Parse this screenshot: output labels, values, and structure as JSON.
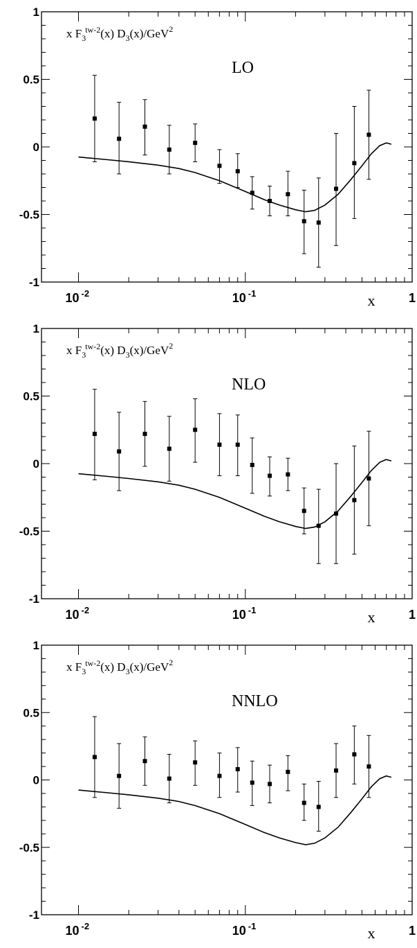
{
  "chart_data": [
    {
      "type": "scatter",
      "annotation": "LO",
      "ylabel": {
        "pre": "x F",
        "sub": "3",
        "sup": "tw-2",
        "post": "(x) D",
        "sub2": "3",
        "post2": "(x)/GeV",
        "sup2": "2"
      },
      "xlabel": "x",
      "x_scale": "log",
      "xlim": [
        0.006,
        1
      ],
      "ylim": [
        -1,
        1
      ],
      "y_ticks": [
        "1",
        "0.5",
        "0",
        "-0.5",
        "-1"
      ],
      "x_ticks": [
        {
          "base": "10",
          "exp": "-2"
        },
        {
          "base": "10",
          "exp": "-1"
        },
        {
          "base": "1",
          "exp": ""
        }
      ],
      "points": [
        {
          "x": 0.0125,
          "y": 0.21,
          "ylo": -0.11,
          "yhi": 0.53
        },
        {
          "x": 0.0175,
          "y": 0.06,
          "ylo": -0.2,
          "yhi": 0.33
        },
        {
          "x": 0.025,
          "y": 0.15,
          "ylo": -0.06,
          "yhi": 0.35
        },
        {
          "x": 0.035,
          "y": -0.02,
          "ylo": -0.2,
          "yhi": 0.16
        },
        {
          "x": 0.05,
          "y": 0.03,
          "ylo": -0.11,
          "yhi": 0.17
        },
        {
          "x": 0.07,
          "y": -0.14,
          "ylo": -0.27,
          "yhi": -0.02
        },
        {
          "x": 0.09,
          "y": -0.18,
          "ylo": -0.3,
          "yhi": -0.05
        },
        {
          "x": 0.11,
          "y": -0.34,
          "ylo": -0.46,
          "yhi": -0.22
        },
        {
          "x": 0.14,
          "y": -0.4,
          "ylo": -0.51,
          "yhi": -0.29
        },
        {
          "x": 0.18,
          "y": -0.35,
          "ylo": -0.51,
          "yhi": -0.18
        },
        {
          "x": 0.225,
          "y": -0.55,
          "ylo": -0.79,
          "yhi": -0.32
        },
        {
          "x": 0.275,
          "y": -0.56,
          "ylo": -0.89,
          "yhi": -0.23
        },
        {
          "x": 0.35,
          "y": -0.31,
          "ylo": -0.73,
          "yhi": 0.1
        },
        {
          "x": 0.45,
          "y": -0.12,
          "ylo": -0.53,
          "yhi": 0.3
        },
        {
          "x": 0.55,
          "y": 0.09,
          "ylo": -0.24,
          "yhi": 0.42
        }
      ],
      "curve": [
        {
          "x": 0.01,
          "y": -0.075
        },
        {
          "x": 0.015,
          "y": -0.095
        },
        {
          "x": 0.02,
          "y": -0.11
        },
        {
          "x": 0.03,
          "y": -0.135
        },
        {
          "x": 0.04,
          "y": -0.16
        },
        {
          "x": 0.05,
          "y": -0.19
        },
        {
          "x": 0.07,
          "y": -0.25
        },
        {
          "x": 0.1,
          "y": -0.33
        },
        {
          "x": 0.13,
          "y": -0.39
        },
        {
          "x": 0.16,
          "y": -0.43
        },
        {
          "x": 0.2,
          "y": -0.465
        },
        {
          "x": 0.23,
          "y": -0.48
        },
        {
          "x": 0.26,
          "y": -0.47
        },
        {
          "x": 0.3,
          "y": -0.43
        },
        {
          "x": 0.36,
          "y": -0.35
        },
        {
          "x": 0.43,
          "y": -0.24
        },
        {
          "x": 0.5,
          "y": -0.14
        },
        {
          "x": 0.57,
          "y": -0.05
        },
        {
          "x": 0.64,
          "y": 0.01
        },
        {
          "x": 0.7,
          "y": 0.03
        },
        {
          "x": 0.75,
          "y": 0.02
        }
      ]
    },
    {
      "type": "scatter",
      "annotation": "NLO",
      "ylabel": {
        "pre": "x F",
        "sub": "3",
        "sup": "tw-2",
        "post": "(x) D",
        "sub2": "3",
        "post2": "(x)/GeV",
        "sup2": "2"
      },
      "xlabel": "x",
      "x_scale": "log",
      "xlim": [
        0.006,
        1
      ],
      "ylim": [
        -1,
        1
      ],
      "y_ticks": [
        "1",
        "0.5",
        "0",
        "-0.5",
        "-1"
      ],
      "x_ticks": [
        {
          "base": "10",
          "exp": "-2"
        },
        {
          "base": "10",
          "exp": "-1"
        },
        {
          "base": "1",
          "exp": ""
        }
      ],
      "points": [
        {
          "x": 0.0125,
          "y": 0.22,
          "ylo": -0.12,
          "yhi": 0.55
        },
        {
          "x": 0.0175,
          "y": 0.09,
          "ylo": -0.2,
          "yhi": 0.38
        },
        {
          "x": 0.025,
          "y": 0.22,
          "ylo": -0.02,
          "yhi": 0.46
        },
        {
          "x": 0.035,
          "y": 0.11,
          "ylo": -0.13,
          "yhi": 0.35
        },
        {
          "x": 0.05,
          "y": 0.25,
          "ylo": 0.01,
          "yhi": 0.48
        },
        {
          "x": 0.07,
          "y": 0.14,
          "ylo": -0.09,
          "yhi": 0.37
        },
        {
          "x": 0.09,
          "y": 0.14,
          "ylo": -0.09,
          "yhi": 0.36
        },
        {
          "x": 0.11,
          "y": -0.01,
          "ylo": -0.22,
          "yhi": 0.19
        },
        {
          "x": 0.14,
          "y": -0.09,
          "ylo": -0.24,
          "yhi": 0.05
        },
        {
          "x": 0.18,
          "y": -0.08,
          "ylo": -0.2,
          "yhi": 0.04
        },
        {
          "x": 0.225,
          "y": -0.35,
          "ylo": -0.52,
          "yhi": -0.18
        },
        {
          "x": 0.275,
          "y": -0.46,
          "ylo": -0.74,
          "yhi": -0.19
        },
        {
          "x": 0.35,
          "y": -0.37,
          "ylo": -0.74,
          "yhi": 0.0
        },
        {
          "x": 0.45,
          "y": -0.27,
          "ylo": -0.67,
          "yhi": 0.13
        },
        {
          "x": 0.55,
          "y": -0.11,
          "ylo": -0.46,
          "yhi": 0.24
        }
      ],
      "curve": [
        {
          "x": 0.01,
          "y": -0.075
        },
        {
          "x": 0.015,
          "y": -0.095
        },
        {
          "x": 0.02,
          "y": -0.11
        },
        {
          "x": 0.03,
          "y": -0.135
        },
        {
          "x": 0.04,
          "y": -0.16
        },
        {
          "x": 0.05,
          "y": -0.19
        },
        {
          "x": 0.07,
          "y": -0.25
        },
        {
          "x": 0.1,
          "y": -0.33
        },
        {
          "x": 0.13,
          "y": -0.39
        },
        {
          "x": 0.16,
          "y": -0.43
        },
        {
          "x": 0.2,
          "y": -0.465
        },
        {
          "x": 0.23,
          "y": -0.48
        },
        {
          "x": 0.26,
          "y": -0.47
        },
        {
          "x": 0.3,
          "y": -0.43
        },
        {
          "x": 0.36,
          "y": -0.35
        },
        {
          "x": 0.43,
          "y": -0.24
        },
        {
          "x": 0.5,
          "y": -0.14
        },
        {
          "x": 0.57,
          "y": -0.05
        },
        {
          "x": 0.64,
          "y": 0.01
        },
        {
          "x": 0.7,
          "y": 0.03
        },
        {
          "x": 0.75,
          "y": 0.02
        }
      ]
    },
    {
      "type": "scatter",
      "annotation": "NNLO",
      "ylabel": {
        "pre": "x F",
        "sub": "3",
        "sup": "tw-2",
        "post": "(x) D",
        "sub2": "3",
        "post2": "(x)/GeV",
        "sup2": "2"
      },
      "xlabel": "x",
      "x_scale": "log",
      "xlim": [
        0.006,
        1
      ],
      "ylim": [
        -1,
        1
      ],
      "y_ticks": [
        "1",
        "0.5",
        "0",
        "-0.5",
        "-1"
      ],
      "x_ticks": [
        {
          "base": "10",
          "exp": "-2"
        },
        {
          "base": "10",
          "exp": "-1"
        },
        {
          "base": "1",
          "exp": ""
        }
      ],
      "points": [
        {
          "x": 0.0125,
          "y": 0.17,
          "ylo": -0.13,
          "yhi": 0.47
        },
        {
          "x": 0.0175,
          "y": 0.03,
          "ylo": -0.21,
          "yhi": 0.27
        },
        {
          "x": 0.025,
          "y": 0.14,
          "ylo": -0.04,
          "yhi": 0.32
        },
        {
          "x": 0.035,
          "y": 0.01,
          "ylo": -0.17,
          "yhi": 0.19
        },
        {
          "x": 0.05,
          "y": 0.13,
          "ylo": -0.04,
          "yhi": 0.29
        },
        {
          "x": 0.07,
          "y": 0.03,
          "ylo": -0.13,
          "yhi": 0.2
        },
        {
          "x": 0.09,
          "y": 0.08,
          "ylo": -0.09,
          "yhi": 0.24
        },
        {
          "x": 0.11,
          "y": -0.02,
          "ylo": -0.19,
          "yhi": 0.14
        },
        {
          "x": 0.14,
          "y": -0.03,
          "ylo": -0.17,
          "yhi": 0.11
        },
        {
          "x": 0.18,
          "y": 0.06,
          "ylo": -0.08,
          "yhi": 0.18
        },
        {
          "x": 0.225,
          "y": -0.17,
          "ylo": -0.3,
          "yhi": -0.03
        },
        {
          "x": 0.275,
          "y": -0.2,
          "ylo": -0.38,
          "yhi": -0.01
        },
        {
          "x": 0.35,
          "y": 0.07,
          "ylo": -0.13,
          "yhi": 0.27
        },
        {
          "x": 0.45,
          "y": 0.19,
          "ylo": -0.03,
          "yhi": 0.4
        },
        {
          "x": 0.55,
          "y": 0.1,
          "ylo": -0.13,
          "yhi": 0.33
        }
      ],
      "curve": [
        {
          "x": 0.01,
          "y": -0.075
        },
        {
          "x": 0.015,
          "y": -0.095
        },
        {
          "x": 0.02,
          "y": -0.11
        },
        {
          "x": 0.03,
          "y": -0.135
        },
        {
          "x": 0.04,
          "y": -0.16
        },
        {
          "x": 0.05,
          "y": -0.19
        },
        {
          "x": 0.07,
          "y": -0.25
        },
        {
          "x": 0.1,
          "y": -0.33
        },
        {
          "x": 0.13,
          "y": -0.39
        },
        {
          "x": 0.16,
          "y": -0.43
        },
        {
          "x": 0.2,
          "y": -0.465
        },
        {
          "x": 0.23,
          "y": -0.48
        },
        {
          "x": 0.26,
          "y": -0.47
        },
        {
          "x": 0.3,
          "y": -0.43
        },
        {
          "x": 0.36,
          "y": -0.35
        },
        {
          "x": 0.43,
          "y": -0.24
        },
        {
          "x": 0.5,
          "y": -0.14
        },
        {
          "x": 0.57,
          "y": -0.05
        },
        {
          "x": 0.64,
          "y": 0.01
        },
        {
          "x": 0.7,
          "y": 0.03
        },
        {
          "x": 0.75,
          "y": 0.02
        }
      ]
    }
  ]
}
